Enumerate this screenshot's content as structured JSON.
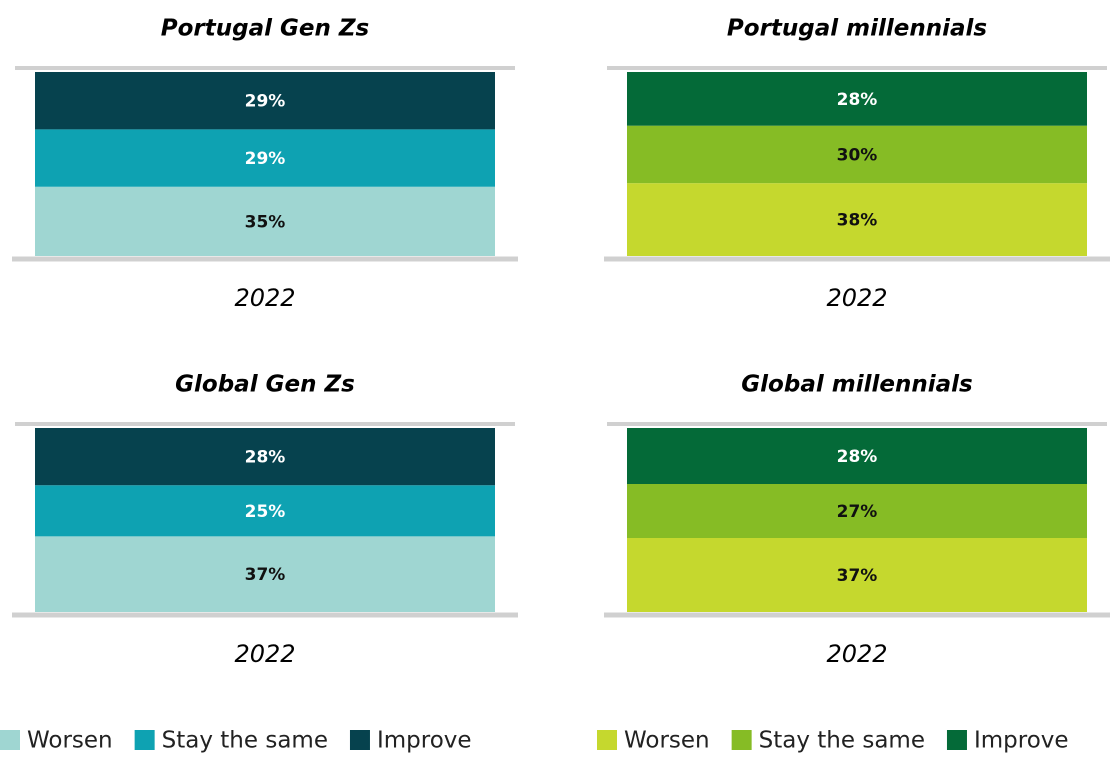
{
  "chart_data": [
    {
      "type": "stacked_bar",
      "title": "Portugal Gen Zs",
      "categories": [
        "2022"
      ],
      "ylim": [
        0,
        93
      ],
      "series": [
        {
          "name": "Worsen",
          "color": "#9fd6d2",
          "values": [
            35
          ],
          "value_labels": [
            "35%"
          ]
        },
        {
          "name": "Stay the same",
          "color": "#0ea2b2",
          "values": [
            29
          ],
          "value_labels": [
            "29%"
          ]
        },
        {
          "name": "Improve",
          "color": "#06424e",
          "values": [
            29
          ],
          "value_labels": [
            "29%"
          ]
        }
      ]
    },
    {
      "type": "stacked_bar",
      "title": "Portugal millennials",
      "categories": [
        "2022"
      ],
      "ylim": [
        0,
        96
      ],
      "series": [
        {
          "name": "Worsen",
          "color": "#c5d82e",
          "values": [
            38
          ],
          "value_labels": [
            "38%"
          ]
        },
        {
          "name": "Stay the same",
          "color": "#86bc25",
          "values": [
            30
          ],
          "value_labels": [
            "30%"
          ]
        },
        {
          "name": "Improve",
          "color": "#046a38",
          "values": [
            28
          ],
          "value_labels": [
            "28%"
          ]
        }
      ]
    },
    {
      "type": "stacked_bar",
      "title": "Global Gen Zs",
      "categories": [
        "2022"
      ],
      "ylim": [
        0,
        90
      ],
      "series": [
        {
          "name": "Worsen",
          "color": "#9fd6d2",
          "values": [
            37
          ],
          "value_labels": [
            "37%"
          ]
        },
        {
          "name": "Stay the same",
          "color": "#0ea2b2",
          "values": [
            25
          ],
          "value_labels": [
            "25%"
          ]
        },
        {
          "name": "Improve",
          "color": "#06424e",
          "values": [
            28
          ],
          "value_labels": [
            "28%"
          ]
        }
      ]
    },
    {
      "type": "stacked_bar",
      "title": "Global millennials",
      "categories": [
        "2022"
      ],
      "ylim": [
        0,
        92
      ],
      "series": [
        {
          "name": "Worsen",
          "color": "#c5d82e",
          "values": [
            37
          ],
          "value_labels": [
            "37%"
          ]
        },
        {
          "name": "Stay the same",
          "color": "#86bc25",
          "values": [
            27
          ],
          "value_labels": [
            "27%"
          ]
        },
        {
          "name": "Improve",
          "color": "#046a38",
          "values": [
            28
          ],
          "value_labels": [
            "28%"
          ]
        }
      ]
    }
  ]
}
